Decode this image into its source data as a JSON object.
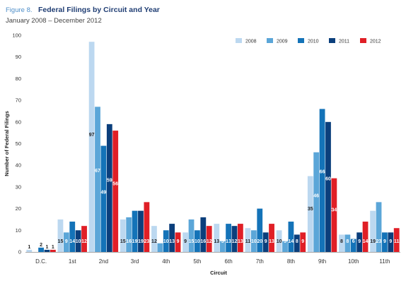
{
  "figure": {
    "label": "Figure 8.",
    "title": "Federal Filings by Circuit and Year",
    "subtitle": "January 2008 – December 2012"
  },
  "colors": {
    "accent": "#4f8fc9",
    "series": [
      "#bcd8f0",
      "#5ba6d8",
      "#1473b8",
      "#0b3f7c",
      "#e01f26"
    ],
    "label_dark": "#222222",
    "label_light": "#ffffff"
  },
  "chart_data": {
    "type": "bar",
    "title": "Federal Filings by Circuit and Year",
    "subtitle": "January 2008 – December 2012",
    "xlabel": "Circuit",
    "ylabel": "Number of Federal Filings",
    "ylim": [
      0,
      100
    ],
    "yticks": [
      0,
      10,
      20,
      30,
      40,
      50,
      60,
      70,
      80,
      90,
      100
    ],
    "grid": false,
    "legend_position": "top-right",
    "categories": [
      "D.C.",
      "1st",
      "2nd",
      "3rd",
      "4th",
      "5th",
      "6th",
      "7th",
      "8th",
      "9th",
      "10th",
      "11th"
    ],
    "series": [
      {
        "name": "2008",
        "values": [
          1,
          15,
          97,
          15,
          12,
          9,
          13,
          11,
          10,
          35,
          8,
          19
        ]
      },
      {
        "name": "2009",
        "values": [
          0,
          9,
          67,
          16,
          4,
          15,
          5,
          10,
          5,
          46,
          8,
          23
        ]
      },
      {
        "name": "2010",
        "values": [
          2,
          14,
          49,
          19,
          10,
          10,
          13,
          20,
          14,
          66,
          6,
          9
        ]
      },
      {
        "name": "2011",
        "values": [
          1,
          10,
          59,
          19,
          13,
          16,
          12,
          9,
          8,
          60,
          9,
          9
        ]
      },
      {
        "name": "2012",
        "values": [
          1,
          12,
          56,
          23,
          9,
          12,
          13,
          13,
          9,
          34,
          14,
          11
        ]
      }
    ],
    "data_labels": [
      [
        "1",
        "",
        "2",
        "1",
        "1"
      ],
      [
        "15",
        "9",
        "14",
        "10",
        "12"
      ],
      [
        "97",
        "67",
        "49",
        "59",
        "56"
      ],
      [
        "15",
        "16",
        "19",
        "19",
        "23"
      ],
      [
        "12",
        "4",
        "10",
        "13",
        "9"
      ],
      [
        "9",
        "15",
        "10",
        "16",
        "12"
      ],
      [
        "13",
        "5",
        "13",
        "12",
        "13"
      ],
      [
        "11",
        "10",
        "20",
        "9",
        "13"
      ],
      [
        "10",
        "5",
        "14",
        "8",
        "9"
      ],
      [
        "35",
        "46",
        "66",
        "60",
        "34"
      ],
      [
        "8",
        "8",
        "6",
        "9",
        "14"
      ],
      [
        "19",
        "23",
        "9",
        "9",
        "11"
      ]
    ]
  }
}
